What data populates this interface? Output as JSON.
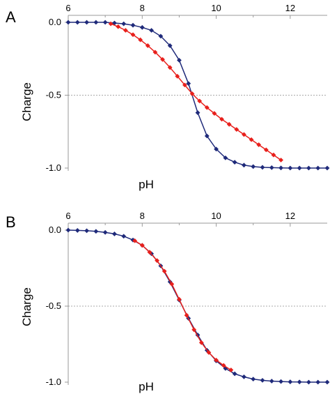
{
  "chart_data": [
    {
      "panel": "A",
      "type": "line",
      "xlabel": "pH",
      "ylabel": "Charge",
      "xlim": [
        6,
        13
      ],
      "ylim": [
        -1.0,
        0.0
      ],
      "x_ticks": [
        "6",
        "8",
        "10",
        "12"
      ],
      "x_tick_values": [
        6,
        8,
        10,
        12
      ],
      "y_ticks": [
        "0.0",
        "-0.5",
        "-1.0"
      ],
      "y_tick_values": [
        0.0,
        -0.5,
        -1.0
      ],
      "reference_line": -0.5,
      "series": [
        {
          "color": "#1f2a7a",
          "marker": "diamond",
          "points": [
            [
              6.0,
              0.0
            ],
            [
              6.25,
              0.0
            ],
            [
              6.5,
              0.0
            ],
            [
              6.75,
              0.0
            ],
            [
              7.0,
              0.0
            ],
            [
              7.25,
              -0.005
            ],
            [
              7.5,
              -0.01
            ],
            [
              7.75,
              -0.02
            ],
            [
              8.0,
              -0.035
            ],
            [
              8.25,
              -0.055
            ],
            [
              8.5,
              -0.095
            ],
            [
              8.75,
              -0.16
            ],
            [
              9.0,
              -0.26
            ],
            [
              9.25,
              -0.42
            ],
            [
              9.5,
              -0.62
            ],
            [
              9.75,
              -0.78
            ],
            [
              10.0,
              -0.87
            ],
            [
              10.25,
              -0.93
            ],
            [
              10.5,
              -0.96
            ],
            [
              10.75,
              -0.98
            ],
            [
              11.0,
              -0.99
            ],
            [
              11.25,
              -0.995
            ],
            [
              11.5,
              -0.997
            ],
            [
              11.75,
              -0.999
            ],
            [
              12.0,
              -1.0
            ],
            [
              12.25,
              -1.0
            ],
            [
              12.5,
              -1.0
            ],
            [
              12.75,
              -1.0
            ],
            [
              13.0,
              -1.0
            ]
          ]
        },
        {
          "color": "#e8201c",
          "marker": "diamond",
          "points": [
            [
              7.15,
              -0.01
            ],
            [
              7.35,
              -0.03
            ],
            [
              7.55,
              -0.055
            ],
            [
              7.75,
              -0.085
            ],
            [
              7.95,
              -0.12
            ],
            [
              8.15,
              -0.16
            ],
            [
              8.35,
              -0.205
            ],
            [
              8.55,
              -0.255
            ],
            [
              8.75,
              -0.31
            ],
            [
              8.95,
              -0.37
            ],
            [
              9.15,
              -0.43
            ],
            [
              9.35,
              -0.49
            ],
            [
              9.55,
              -0.54
            ],
            [
              9.75,
              -0.585
            ],
            [
              9.95,
              -0.625
            ],
            [
              10.15,
              -0.665
            ],
            [
              10.35,
              -0.7
            ],
            [
              10.55,
              -0.735
            ],
            [
              10.75,
              -0.77
            ],
            [
              10.95,
              -0.805
            ],
            [
              11.15,
              -0.84
            ],
            [
              11.35,
              -0.875
            ],
            [
              11.55,
              -0.91
            ],
            [
              11.75,
              -0.945
            ]
          ]
        }
      ]
    },
    {
      "panel": "B",
      "type": "line",
      "xlabel": "pH",
      "ylabel": "Charge",
      "xlim": [
        6,
        13
      ],
      "ylim": [
        -1.0,
        0.0
      ],
      "x_ticks": [
        "6",
        "8",
        "10",
        "12"
      ],
      "x_tick_values": [
        6,
        8,
        10,
        12
      ],
      "y_ticks": [
        "0.0",
        "-0.5",
        "-1.0"
      ],
      "y_tick_values": [
        0.0,
        -0.5,
        -1.0
      ],
      "reference_line": -0.5,
      "series": [
        {
          "color": "#1f2a7a",
          "marker": "diamond",
          "points": [
            [
              6.0,
              0.0
            ],
            [
              6.25,
              -0.002
            ],
            [
              6.5,
              -0.004
            ],
            [
              6.75,
              -0.008
            ],
            [
              7.0,
              -0.015
            ],
            [
              7.25,
              -0.025
            ],
            [
              7.5,
              -0.04
            ],
            [
              7.75,
              -0.065
            ],
            [
              8.0,
              -0.1
            ],
            [
              8.25,
              -0.155
            ],
            [
              8.5,
              -0.235
            ],
            [
              8.75,
              -0.34
            ],
            [
              9.0,
              -0.46
            ],
            [
              9.25,
              -0.58
            ],
            [
              9.5,
              -0.69
            ],
            [
              9.75,
              -0.79
            ],
            [
              10.0,
              -0.86
            ],
            [
              10.25,
              -0.91
            ],
            [
              10.5,
              -0.945
            ],
            [
              10.75,
              -0.965
            ],
            [
              11.0,
              -0.98
            ],
            [
              11.25,
              -0.988
            ],
            [
              11.5,
              -0.993
            ],
            [
              11.75,
              -0.996
            ],
            [
              12.0,
              -0.998
            ],
            [
              12.25,
              -0.999
            ],
            [
              12.5,
              -1.0
            ],
            [
              12.75,
              -1.0
            ],
            [
              13.0,
              -1.0
            ]
          ]
        },
        {
          "color": "#e8201c",
          "marker": "diamond",
          "points": [
            [
              7.8,
              -0.07
            ],
            [
              8.0,
              -0.1
            ],
            [
              8.2,
              -0.145
            ],
            [
              8.4,
              -0.2
            ],
            [
              8.6,
              -0.27
            ],
            [
              8.8,
              -0.355
            ],
            [
              9.0,
              -0.455
            ],
            [
              9.2,
              -0.56
            ],
            [
              9.4,
              -0.655
            ],
            [
              9.6,
              -0.74
            ],
            [
              9.8,
              -0.805
            ],
            [
              10.0,
              -0.855
            ],
            [
              10.2,
              -0.89
            ],
            [
              10.4,
              -0.92
            ]
          ]
        }
      ]
    }
  ]
}
